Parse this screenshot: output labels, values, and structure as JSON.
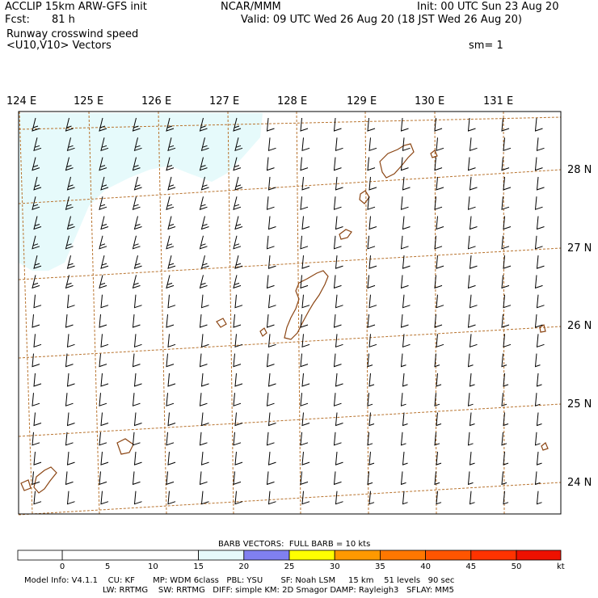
{
  "header": {
    "model_title": "ACCLIP 15km ARW-GFS init",
    "center": "NCAR/MMM",
    "init": "Init: 00 UTC Sun 23 Aug 20",
    "fcst_label": "Fcst:",
    "fcst_value": "81 h",
    "valid": "Valid: 09 UTC Wed 26 Aug 20 (18 JST Wed 26 Aug 20)",
    "field_name": "Runway crosswind speed",
    "vectors": "<U10,V10> Vectors",
    "smoothing": "sm= 1"
  },
  "map": {
    "lon_labels": [
      "124 E",
      "125 E",
      "126 E",
      "127 E",
      "128 E",
      "129 E",
      "130 E",
      "131 E"
    ],
    "lat_labels": [
      "28 N",
      "27 N",
      "26 N",
      "25 N",
      "24 N"
    ],
    "colors": {
      "graticule": "#b8732e",
      "coast": "#8b4513",
      "fill": "#e6fafb",
      "barb": "#000000"
    }
  },
  "legend": {
    "barb_note": "BARB VECTORS:  FULL BARB = 10 kts",
    "unit": "kt",
    "ticks": [
      "0",
      "5",
      "10",
      "15",
      "20",
      "25",
      "30",
      "35",
      "40",
      "45",
      "50"
    ],
    "colors": [
      "#ffffff",
      "#ffffff",
      "#ffffff",
      "#ffffff",
      "#e6fafb",
      "#8080f0",
      "#ffff00",
      "#ff9900",
      "#ff7700",
      "#ff5500",
      "#ff3300",
      "#ff1100",
      "#ee0000"
    ]
  },
  "footer": {
    "line1": "Model Info: V4.1.1    CU: KF       MP: WDM 6class   PBL: YSU       SF: Noah LSM     15 km    51 levels   90 sec",
    "line2": "LW: RRTMG    SW: RRTMG   DIFF: simple KM: 2D Smagor DAMP: Rayleigh3   SFLAY: MM5"
  }
}
